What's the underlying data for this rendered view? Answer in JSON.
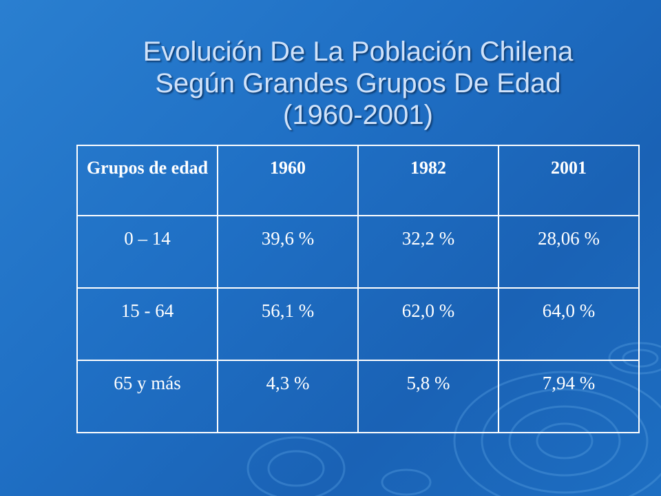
{
  "title": {
    "line1": "Evolución De La Población Chilena",
    "line2": "Según Grandes Grupos De Edad",
    "line3": "(1960-2001)"
  },
  "table": {
    "headers": [
      "Grupos de edad",
      "1960",
      "1982",
      "2001"
    ],
    "rows": [
      [
        "0 – 14",
        "39,6 %",
        "32,2 %",
        "28,06 %"
      ],
      [
        "15 - 64",
        "56,1 %",
        "62,0 %",
        "64,0 %"
      ],
      [
        "65 y más",
        "4,3 %",
        "5,8 %",
        "7,94 %"
      ]
    ]
  },
  "colors": {
    "background": "#1f6fc4",
    "title": "#cfe2fa",
    "table_text": "#ffffff",
    "table_border": "#ffffff"
  }
}
